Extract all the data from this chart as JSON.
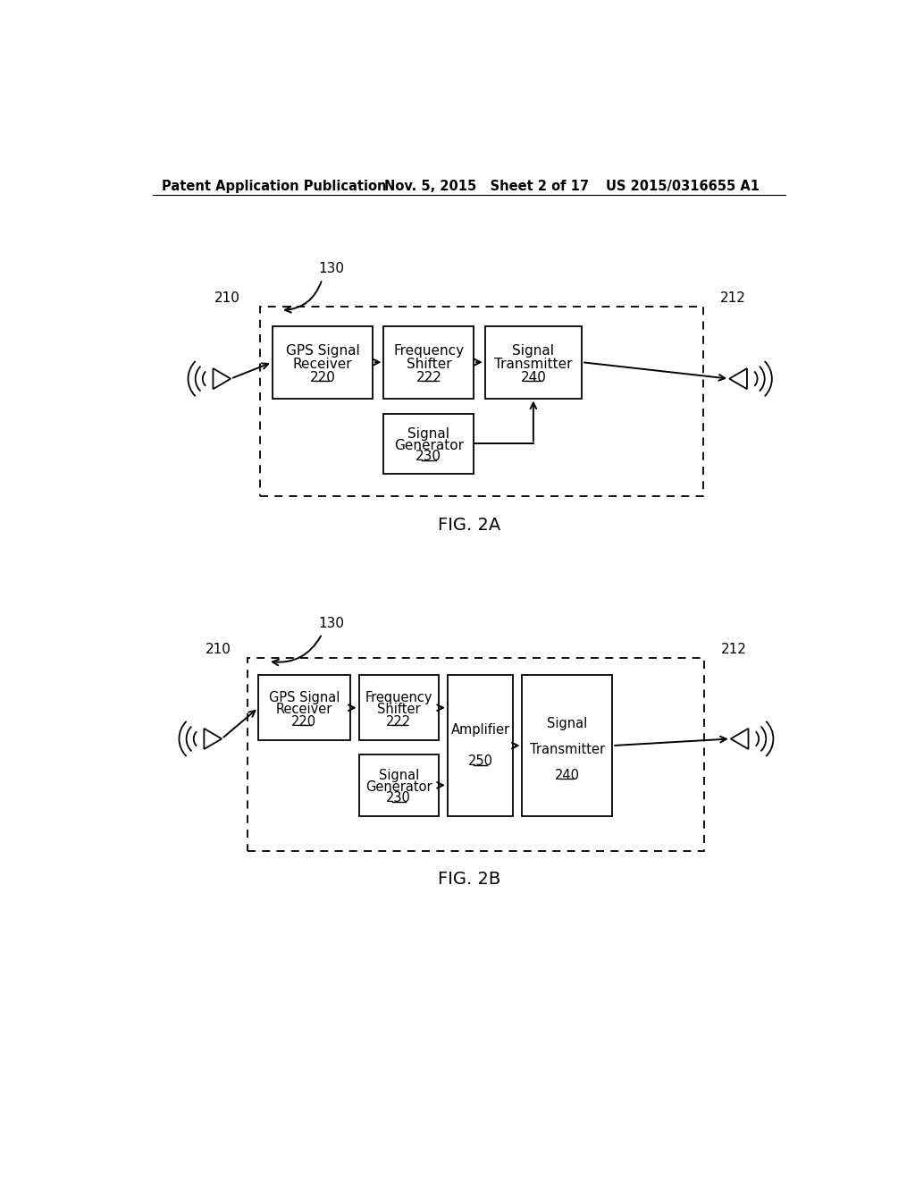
{
  "bg_color": "#ffffff",
  "header_left": "Patent Application Publication",
  "header_mid": "Nov. 5, 2015   Sheet 2 of 17",
  "header_right": "US 2015/0316655 A1",
  "fig2a_label": "FIG. 2A",
  "fig2b_label": "FIG. 2B",
  "box_220_text": "GPS Signal\nReceiver\n220",
  "box_222a_text": "Frequency\nShifter\n222",
  "box_240a_text": "Signal\nTransmitter\n240",
  "box_230a_text": "Signal\nGenerator\n230",
  "box_222b_text": "Frequency\nShifter\n222",
  "box_230b_text": "Signal\nGenerator\n230",
  "box_250_text": "Amplifier\n250",
  "box_240b_text": "Signal\nTransmitter\n240"
}
